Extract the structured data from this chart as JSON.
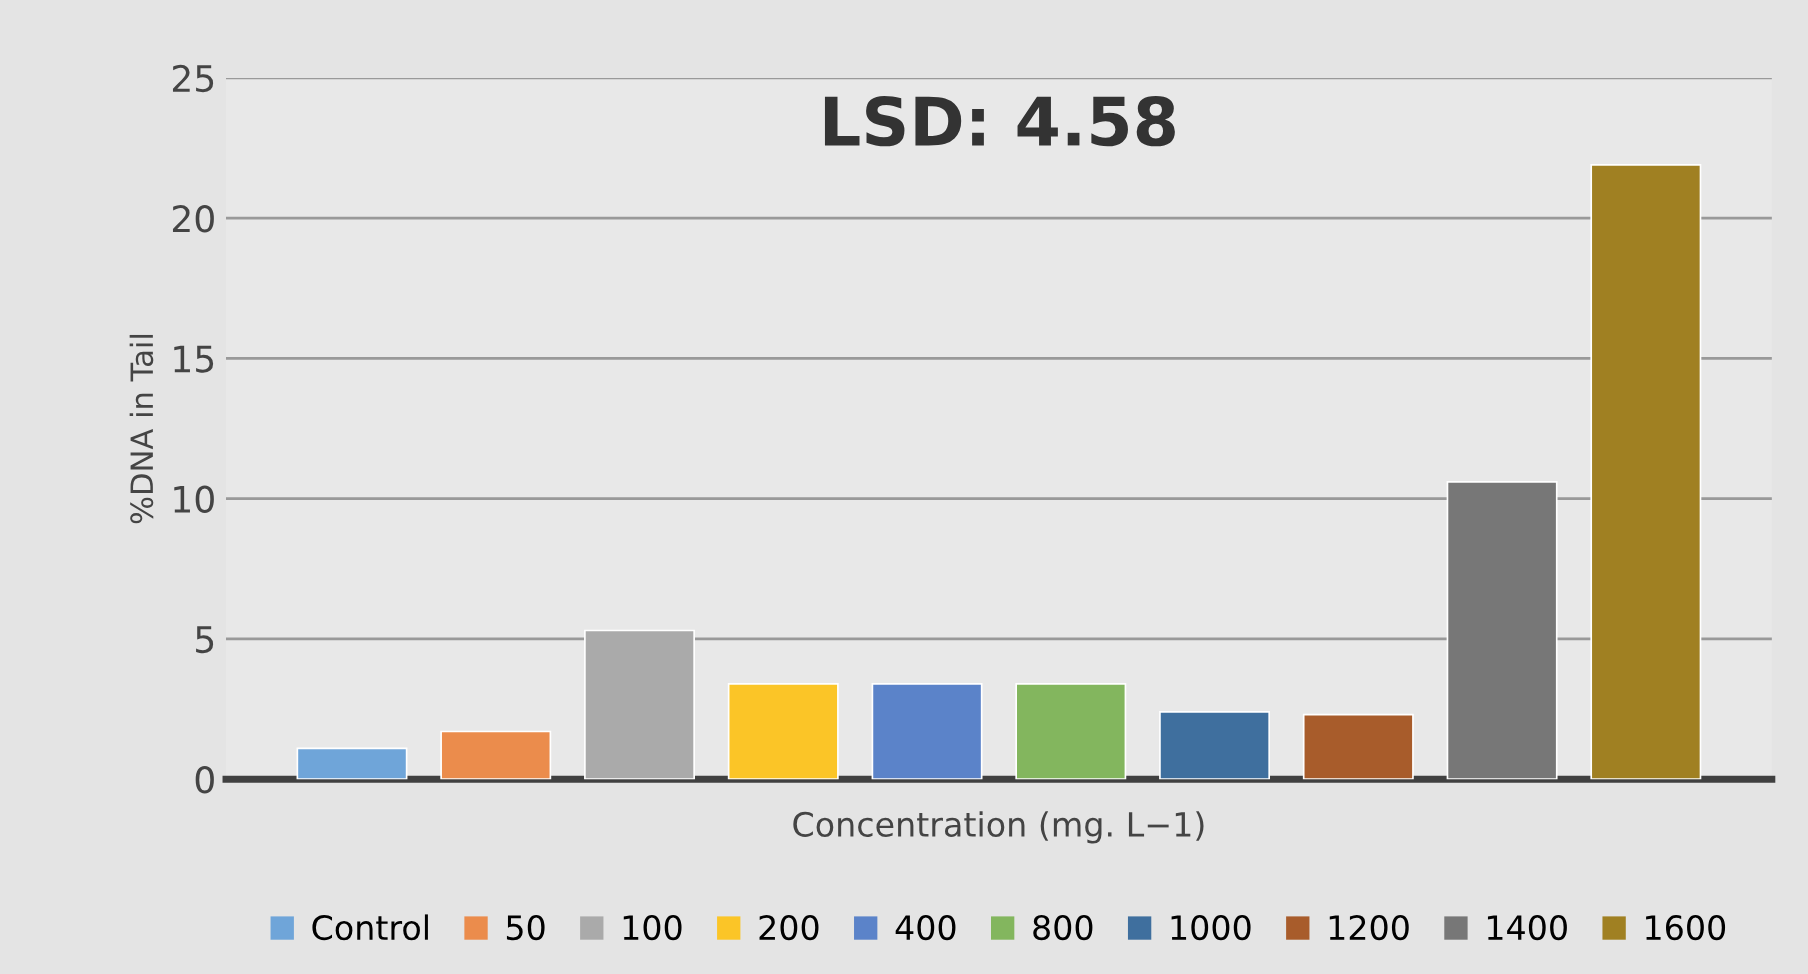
{
  "chart_data": {
    "type": "bar",
    "title": "LSD: 4.58",
    "xlabel": "Concentration (mg. L−1)",
    "ylabel": "%DNA in Tail",
    "categories": [
      null
    ],
    "series": [
      {
        "name": "Control",
        "color": "#6fa5d9",
        "values": [
          1.1
        ]
      },
      {
        "name": "50",
        "color": "#eb8c4c",
        "values": [
          1.7
        ]
      },
      {
        "name": "100",
        "color": "#aaaaaa",
        "values": [
          5.3
        ]
      },
      {
        "name": "200",
        "color": "#fbc527",
        "values": [
          3.4
        ]
      },
      {
        "name": "400",
        "color": "#5b83c9",
        "values": [
          3.4
        ]
      },
      {
        "name": "800",
        "color": "#83b65e",
        "values": [
          3.4
        ]
      },
      {
        "name": "1000",
        "color": "#3f6f9e",
        "values": [
          2.4
        ]
      },
      {
        "name": "1200",
        "color": "#a85c2b",
        "values": [
          2.3
        ]
      },
      {
        "name": "1400",
        "color": "#777777",
        "values": [
          10.6
        ]
      },
      {
        "name": "1600",
        "color": "#a08022",
        "values": [
          21.9
        ]
      }
    ],
    "ylim": [
      0,
      25
    ],
    "yticks": [
      0,
      5,
      10,
      15,
      20,
      25
    ],
    "grid": "y",
    "legend": "bottom"
  }
}
